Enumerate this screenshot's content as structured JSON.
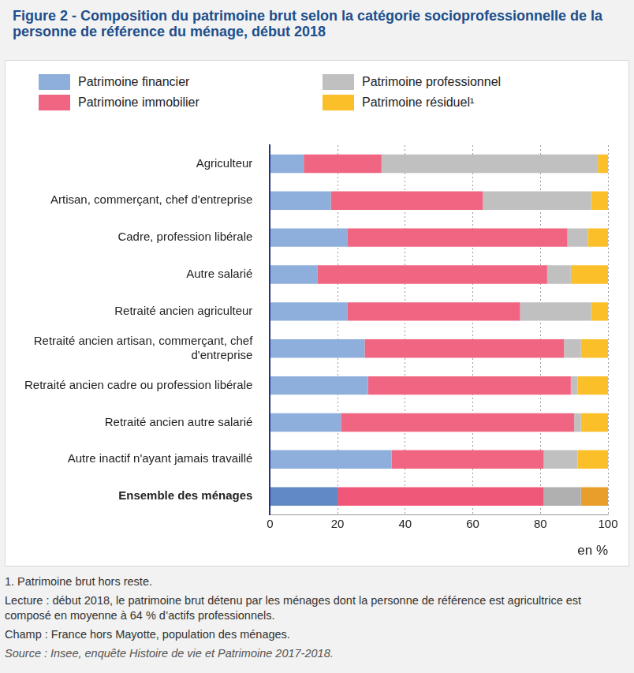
{
  "chart_data": {
    "type": "bar",
    "title": "Figure 2 - Composition du patrimoine brut selon la catégorie socioprofessionnelle de la personne de référence du ménage, début 2018",
    "orientation": "horizontal",
    "stacked": true,
    "grid": true,
    "legend": "top",
    "categories": [
      "Agriculteur",
      "Artisan, commerçant, chef d'entreprise",
      "Cadre, profession libérale",
      "Autre salarié",
      "Retraité ancien agriculteur",
      "Retraité ancien artisan, commerçant, chef d'entreprise",
      "Retraité ancien cadre ou profession libérale",
      "Retraité ancien autre salarié",
      "Autre inactif n'ayant jamais travaillé",
      "Ensemble des ménages"
    ],
    "series": [
      {
        "name": "Patrimoine financier",
        "color": "#8eaedb",
        "colors": [
          "#8eaedb",
          "#8eaedb",
          "#8eaedb",
          "#8eaedb",
          "#8eaedb",
          "#8eaedb",
          "#8eaedb",
          "#8eaedb",
          "#8eaedb",
          "#6189c6"
        ],
        "values": [
          10,
          18,
          23,
          14,
          23,
          28,
          29,
          21,
          36,
          20
        ]
      },
      {
        "name": "Patrimoine immobilier",
        "color": "#f06582",
        "colors": [
          "#f06582",
          "#f06582",
          "#f06582",
          "#f06582",
          "#f06582",
          "#f06582",
          "#f06582",
          "#f06582",
          "#f06582",
          "#ef5878"
        ],
        "values": [
          23,
          45,
          65,
          68,
          51,
          59,
          60,
          69,
          45,
          61
        ]
      },
      {
        "name": "Patrimoine professionnel",
        "color": "#c0c0c0",
        "colors": [
          "#c0c0c0",
          "#c0c0c0",
          "#c0c0c0",
          "#c0c0c0",
          "#c0c0c0",
          "#c0c0c0",
          "#c0c0c0",
          "#c0c0c0",
          "#c0c0c0",
          "#b0b0b0"
        ],
        "values": [
          64,
          32,
          6,
          7,
          21,
          5,
          2,
          2,
          10,
          11
        ]
      },
      {
        "name": "Patrimoine résiduel¹",
        "color": "#fbbf2a",
        "colors": [
          "#fbbf2a",
          "#fbbf2a",
          "#fbbf2a",
          "#fbbf2a",
          "#fbbf2a",
          "#fbbf2a",
          "#fbbf2a",
          "#fbbf2a",
          "#fbbf2a",
          "#e99d2a"
        ],
        "values": [
          3,
          5,
          6,
          11,
          5,
          8,
          9,
          8,
          9,
          8
        ]
      }
    ],
    "xlim": [
      0,
      100
    ],
    "xticks": [
      0,
      20,
      40,
      60,
      80,
      100
    ],
    "x_label": "en %",
    "notes": [
      "1. Patrimoine brut hors reste.",
      "Lecture : début 2018, le patrimoine brut détenu par les ménages dont la personne de référence est agricultrice est composé en moyenne à 64 % d’actifs professionnels.",
      "Champ : France hors Mayotte, population des ménages."
    ],
    "source": "Source : Insee, enquête Histoire de vie et Patrimoine 2017-2018."
  }
}
